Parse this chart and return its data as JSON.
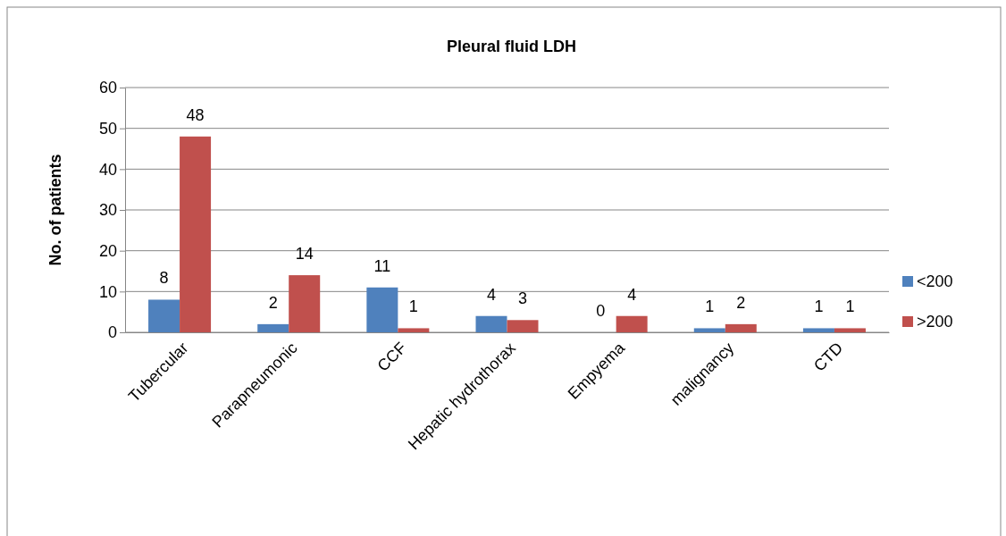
{
  "chart_data": {
    "type": "bar",
    "title": "Pleural fluid LDH",
    "ylabel": "No. of patients",
    "categories": [
      "Tubercular",
      "Parapneumonic",
      "CCF",
      "Hepatic hydrothorax",
      "Empyema",
      "malignancy",
      "CTD"
    ],
    "series": [
      {
        "name": "<200",
        "color": "#4f81bd",
        "values": [
          8,
          2,
          11,
          4,
          0,
          1,
          1
        ]
      },
      {
        "name": ">200",
        "color": "#c0504d",
        "values": [
          48,
          14,
          1,
          3,
          4,
          2,
          1
        ]
      }
    ],
    "ylim": [
      0,
      60
    ],
    "yticks": [
      0,
      10,
      20,
      30,
      40,
      50,
      60
    ],
    "grid": "y",
    "legend": "right",
    "data_labels": true
  }
}
